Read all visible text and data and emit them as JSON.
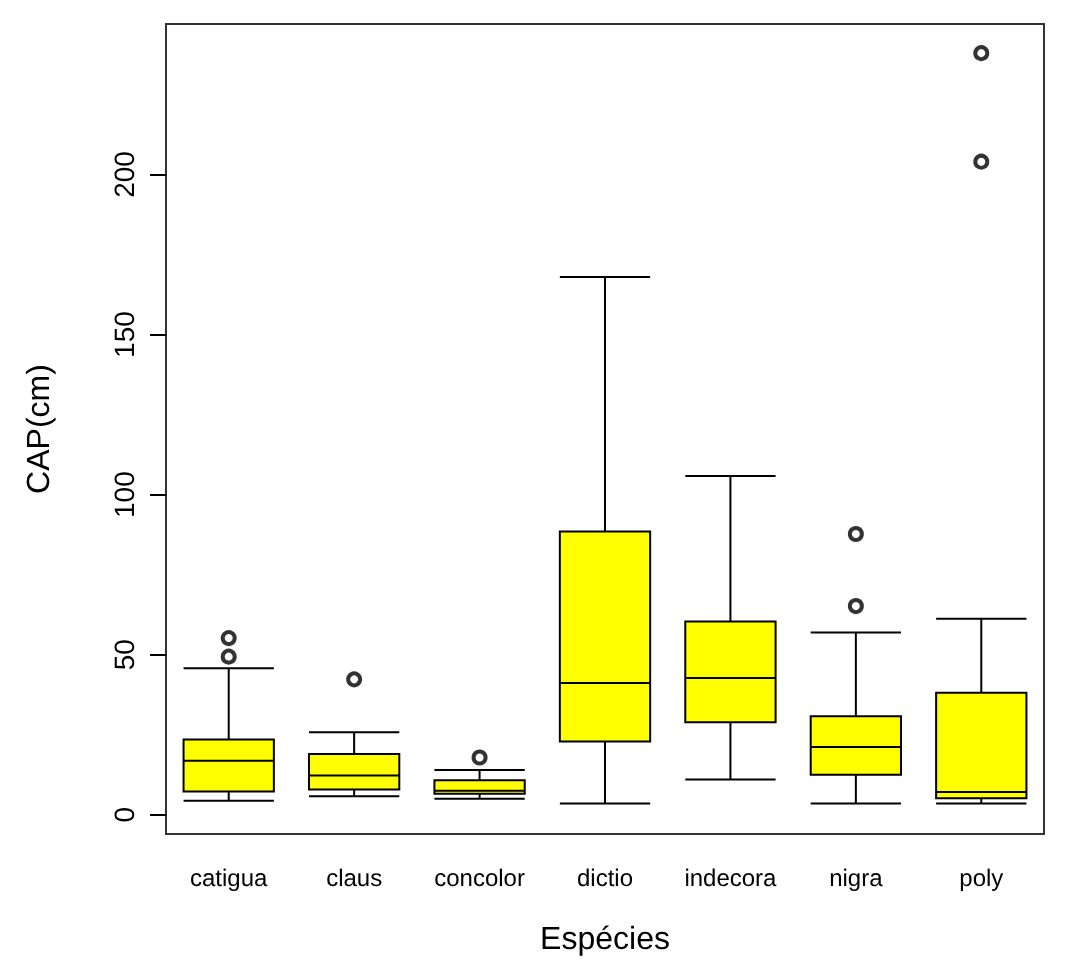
{
  "chart_data": {
    "type": "box",
    "xlabel": "Espécies",
    "ylabel": "CAP(cm)",
    "categories": [
      "catigua",
      "claus",
      "concolor",
      "dictio",
      "indecora",
      "nigra",
      "poly"
    ],
    "color": "#ffff00",
    "boxes": [
      {
        "low": 4.4,
        "q1": 7.3,
        "median": 16.9,
        "q3": 23.5,
        "high": 45.8,
        "outliers": [
          49.4,
          55.2
        ]
      },
      {
        "low": 5.8,
        "q1": 7.9,
        "median": 12.3,
        "q3": 19,
        "high": 25.8,
        "outliers": [
          42.3
        ]
      },
      {
        "low": 5,
        "q1": 6.6,
        "median": 7.5,
        "q3": 10.8,
        "high": 14,
        "outliers": [
          17.9
        ]
      },
      {
        "low": 3.5,
        "q1": 22.9,
        "median": 41.2,
        "q3": 88.5,
        "high": 168
      },
      {
        "low": 11,
        "q1": 28.9,
        "median": 42.7,
        "q3": 60.4,
        "high": 105.8
      },
      {
        "low": 3.5,
        "q1": 12.5,
        "median": 21.2,
        "q3": 30.8,
        "high": 56.9,
        "outliers": [
          65.2,
          87.7
        ]
      },
      {
        "low": 3.5,
        "q1": 5.2,
        "median": 7.1,
        "q3": 38.1,
        "high": 61.2,
        "outliers": [
          204,
          237.9
        ]
      }
    ],
    "ylim": [
      -6,
      247
    ],
    "yticks": [
      0,
      50,
      100,
      150,
      200
    ],
    "grid": false
  }
}
